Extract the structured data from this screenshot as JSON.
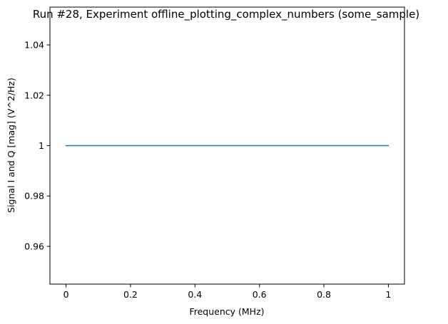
{
  "chart_data": {
    "type": "line",
    "title": "Run #28, Experiment offline_plotting_complex_numbers (some_sample)",
    "xlabel": "Frequency (MHz)",
    "ylabel": "Signal I and Q [mag] (V^2/Hz)",
    "xlim": [
      -0.05,
      1.05
    ],
    "ylim": [
      0.945,
      1.055
    ],
    "x_ticks": [
      0,
      0.2,
      0.4,
      0.6,
      0.8,
      1
    ],
    "x_tick_labels": [
      "0",
      "0.2",
      "0.4",
      "0.6",
      "0.8",
      "1"
    ],
    "y_ticks": [
      0.96,
      0.98,
      1.0,
      1.02,
      1.04
    ],
    "y_tick_labels": [
      "0.96",
      "0.98",
      "1",
      "1.02",
      "1.04"
    ],
    "grid": false,
    "series": [
      {
        "x": [
          0,
          1
        ],
        "y": [
          1,
          1
        ],
        "color": "#1f77b4"
      }
    ]
  }
}
